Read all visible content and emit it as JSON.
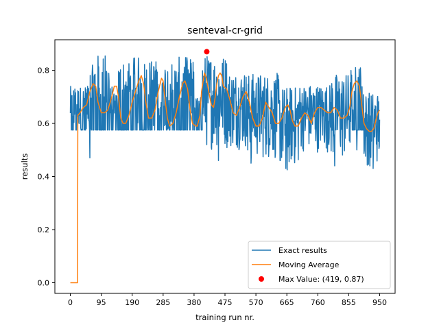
{
  "chart_data": {
    "type": "line",
    "title": "senteval-cr-grid",
    "xlabel": "training run nr.",
    "ylabel": "results",
    "xlim": [
      -47.5,
      997.5
    ],
    "ylim": [
      -0.04,
      0.915
    ],
    "xticks": [
      0,
      95,
      190,
      285,
      380,
      475,
      570,
      665,
      760,
      855,
      950
    ],
    "yticks": [
      0.0,
      0.2,
      0.4,
      0.6,
      0.8
    ],
    "ytick_labels": [
      "0.0",
      "0.2",
      "0.4",
      "0.6",
      "0.8"
    ],
    "legend_position": "lower right",
    "series": [
      {
        "name": "Exact results",
        "color": "#1f77b4",
        "style": "noisy",
        "x_range": [
          0,
          950
        ],
        "baseline": 0.575,
        "segments": [
          {
            "from": 0,
            "to": 55,
            "low": 0.575,
            "high": 0.74
          },
          {
            "from": 55,
            "to": 70,
            "low": 0.575,
            "high": 0.82
          },
          {
            "from": 70,
            "to": 120,
            "low": 0.575,
            "high": 0.86
          },
          {
            "from": 120,
            "to": 145,
            "low": 0.575,
            "high": 0.74
          },
          {
            "from": 145,
            "to": 190,
            "low": 0.575,
            "high": 0.84
          },
          {
            "from": 190,
            "to": 225,
            "low": 0.575,
            "high": 0.85
          },
          {
            "from": 225,
            "to": 265,
            "low": 0.575,
            "high": 0.84
          },
          {
            "from": 265,
            "to": 285,
            "low": 0.575,
            "high": 0.8
          },
          {
            "from": 285,
            "to": 330,
            "low": 0.575,
            "high": 0.84
          },
          {
            "from": 330,
            "to": 380,
            "low": 0.575,
            "high": 0.85
          },
          {
            "from": 380,
            "to": 405,
            "low": 0.575,
            "high": 0.7
          },
          {
            "from": 405,
            "to": 480,
            "low": 0.5,
            "high": 0.86
          },
          {
            "from": 480,
            "to": 540,
            "low": 0.5,
            "high": 0.8
          },
          {
            "from": 540,
            "to": 640,
            "low": 0.46,
            "high": 0.79
          },
          {
            "from": 640,
            "to": 700,
            "low": 0.43,
            "high": 0.74
          },
          {
            "from": 700,
            "to": 800,
            "low": 0.49,
            "high": 0.75
          },
          {
            "from": 800,
            "to": 860,
            "low": 0.45,
            "high": 0.79
          },
          {
            "from": 860,
            "to": 900,
            "low": 0.575,
            "high": 0.82
          },
          {
            "from": 900,
            "to": 950,
            "low": 0.44,
            "high": 0.72
          }
        ],
        "dips": [
          {
            "x": 60,
            "y": 0.47
          },
          {
            "x": 455,
            "y": 0.46
          },
          {
            "x": 545,
            "y": 0.5
          },
          {
            "x": 555,
            "y": 0.45
          },
          {
            "x": 645,
            "y": 0.46
          },
          {
            "x": 662,
            "y": 0.43
          },
          {
            "x": 666,
            "y": 0.425
          },
          {
            "x": 812,
            "y": 0.44
          },
          {
            "x": 880,
            "y": 0.5
          },
          {
            "x": 920,
            "y": 0.44
          },
          {
            "x": 930,
            "y": 0.43
          }
        ]
      },
      {
        "name": "Moving Average",
        "color": "#ff7f0e",
        "style": "line",
        "points": [
          [
            0,
            0.0
          ],
          [
            22,
            0.0
          ],
          [
            23,
            0.63
          ],
          [
            30,
            0.64
          ],
          [
            40,
            0.66
          ],
          [
            50,
            0.67
          ],
          [
            60,
            0.72
          ],
          [
            70,
            0.75
          ],
          [
            78,
            0.74
          ],
          [
            85,
            0.68
          ],
          [
            95,
            0.64
          ],
          [
            105,
            0.64
          ],
          [
            115,
            0.65
          ],
          [
            125,
            0.69
          ],
          [
            135,
            0.74
          ],
          [
            142,
            0.74
          ],
          [
            148,
            0.7
          ],
          [
            155,
            0.62
          ],
          [
            162,
            0.6
          ],
          [
            170,
            0.6
          ],
          [
            180,
            0.63
          ],
          [
            190,
            0.68
          ],
          [
            200,
            0.72
          ],
          [
            210,
            0.76
          ],
          [
            218,
            0.78
          ],
          [
            225,
            0.75
          ],
          [
            232,
            0.68
          ],
          [
            240,
            0.62
          ],
          [
            250,
            0.62
          ],
          [
            260,
            0.65
          ],
          [
            270,
            0.72
          ],
          [
            280,
            0.77
          ],
          [
            285,
            0.76
          ],
          [
            290,
            0.7
          ],
          [
            298,
            0.62
          ],
          [
            305,
            0.59
          ],
          [
            315,
            0.6
          ],
          [
            325,
            0.64
          ],
          [
            335,
            0.7
          ],
          [
            345,
            0.75
          ],
          [
            352,
            0.76
          ],
          [
            360,
            0.73
          ],
          [
            368,
            0.65
          ],
          [
            375,
            0.6
          ],
          [
            385,
            0.59
          ],
          [
            390,
            0.59
          ],
          [
            398,
            0.63
          ],
          [
            403,
            0.72
          ],
          [
            408,
            0.76
          ],
          [
            412,
            0.79
          ],
          [
            418,
            0.77
          ],
          [
            425,
            0.72
          ],
          [
            433,
            0.67
          ],
          [
            440,
            0.66
          ],
          [
            445,
            0.7
          ],
          [
            450,
            0.75
          ],
          [
            455,
            0.78
          ],
          [
            460,
            0.79
          ],
          [
            465,
            0.78
          ],
          [
            470,
            0.74
          ],
          [
            480,
            0.73
          ],
          [
            490,
            0.69
          ],
          [
            500,
            0.64
          ],
          [
            510,
            0.63
          ],
          [
            520,
            0.66
          ],
          [
            530,
            0.7
          ],
          [
            540,
            0.72
          ],
          [
            550,
            0.68
          ],
          [
            560,
            0.62
          ],
          [
            570,
            0.59
          ],
          [
            580,
            0.59
          ],
          [
            590,
            0.62
          ],
          [
            600,
            0.68
          ],
          [
            610,
            0.66
          ],
          [
            620,
            0.64
          ],
          [
            630,
            0.6
          ],
          [
            640,
            0.6
          ],
          [
            650,
            0.62
          ],
          [
            660,
            0.66
          ],
          [
            668,
            0.67
          ],
          [
            675,
            0.65
          ],
          [
            682,
            0.61
          ],
          [
            690,
            0.59
          ],
          [
            700,
            0.59
          ],
          [
            710,
            0.62
          ],
          [
            720,
            0.64
          ],
          [
            730,
            0.63
          ],
          [
            740,
            0.6
          ],
          [
            750,
            0.64
          ],
          [
            760,
            0.66
          ],
          [
            770,
            0.66
          ],
          [
            780,
            0.65
          ],
          [
            790,
            0.64
          ],
          [
            800,
            0.64
          ],
          [
            810,
            0.66
          ],
          [
            820,
            0.65
          ],
          [
            830,
            0.62
          ],
          [
            840,
            0.62
          ],
          [
            850,
            0.63
          ],
          [
            858,
            0.66
          ],
          [
            865,
            0.72
          ],
          [
            872,
            0.75
          ],
          [
            880,
            0.76
          ],
          [
            888,
            0.74
          ],
          [
            895,
            0.67
          ],
          [
            902,
            0.6
          ],
          [
            910,
            0.58
          ],
          [
            918,
            0.57
          ],
          [
            925,
            0.57
          ],
          [
            932,
            0.58
          ],
          [
            940,
            0.62
          ],
          [
            945,
            0.64
          ],
          [
            950,
            0.65
          ]
        ]
      },
      {
        "name": "Max Value: (419, 0.87)",
        "color": "#ff0000",
        "style": "marker",
        "points": [
          [
            419,
            0.87
          ]
        ]
      }
    ]
  }
}
